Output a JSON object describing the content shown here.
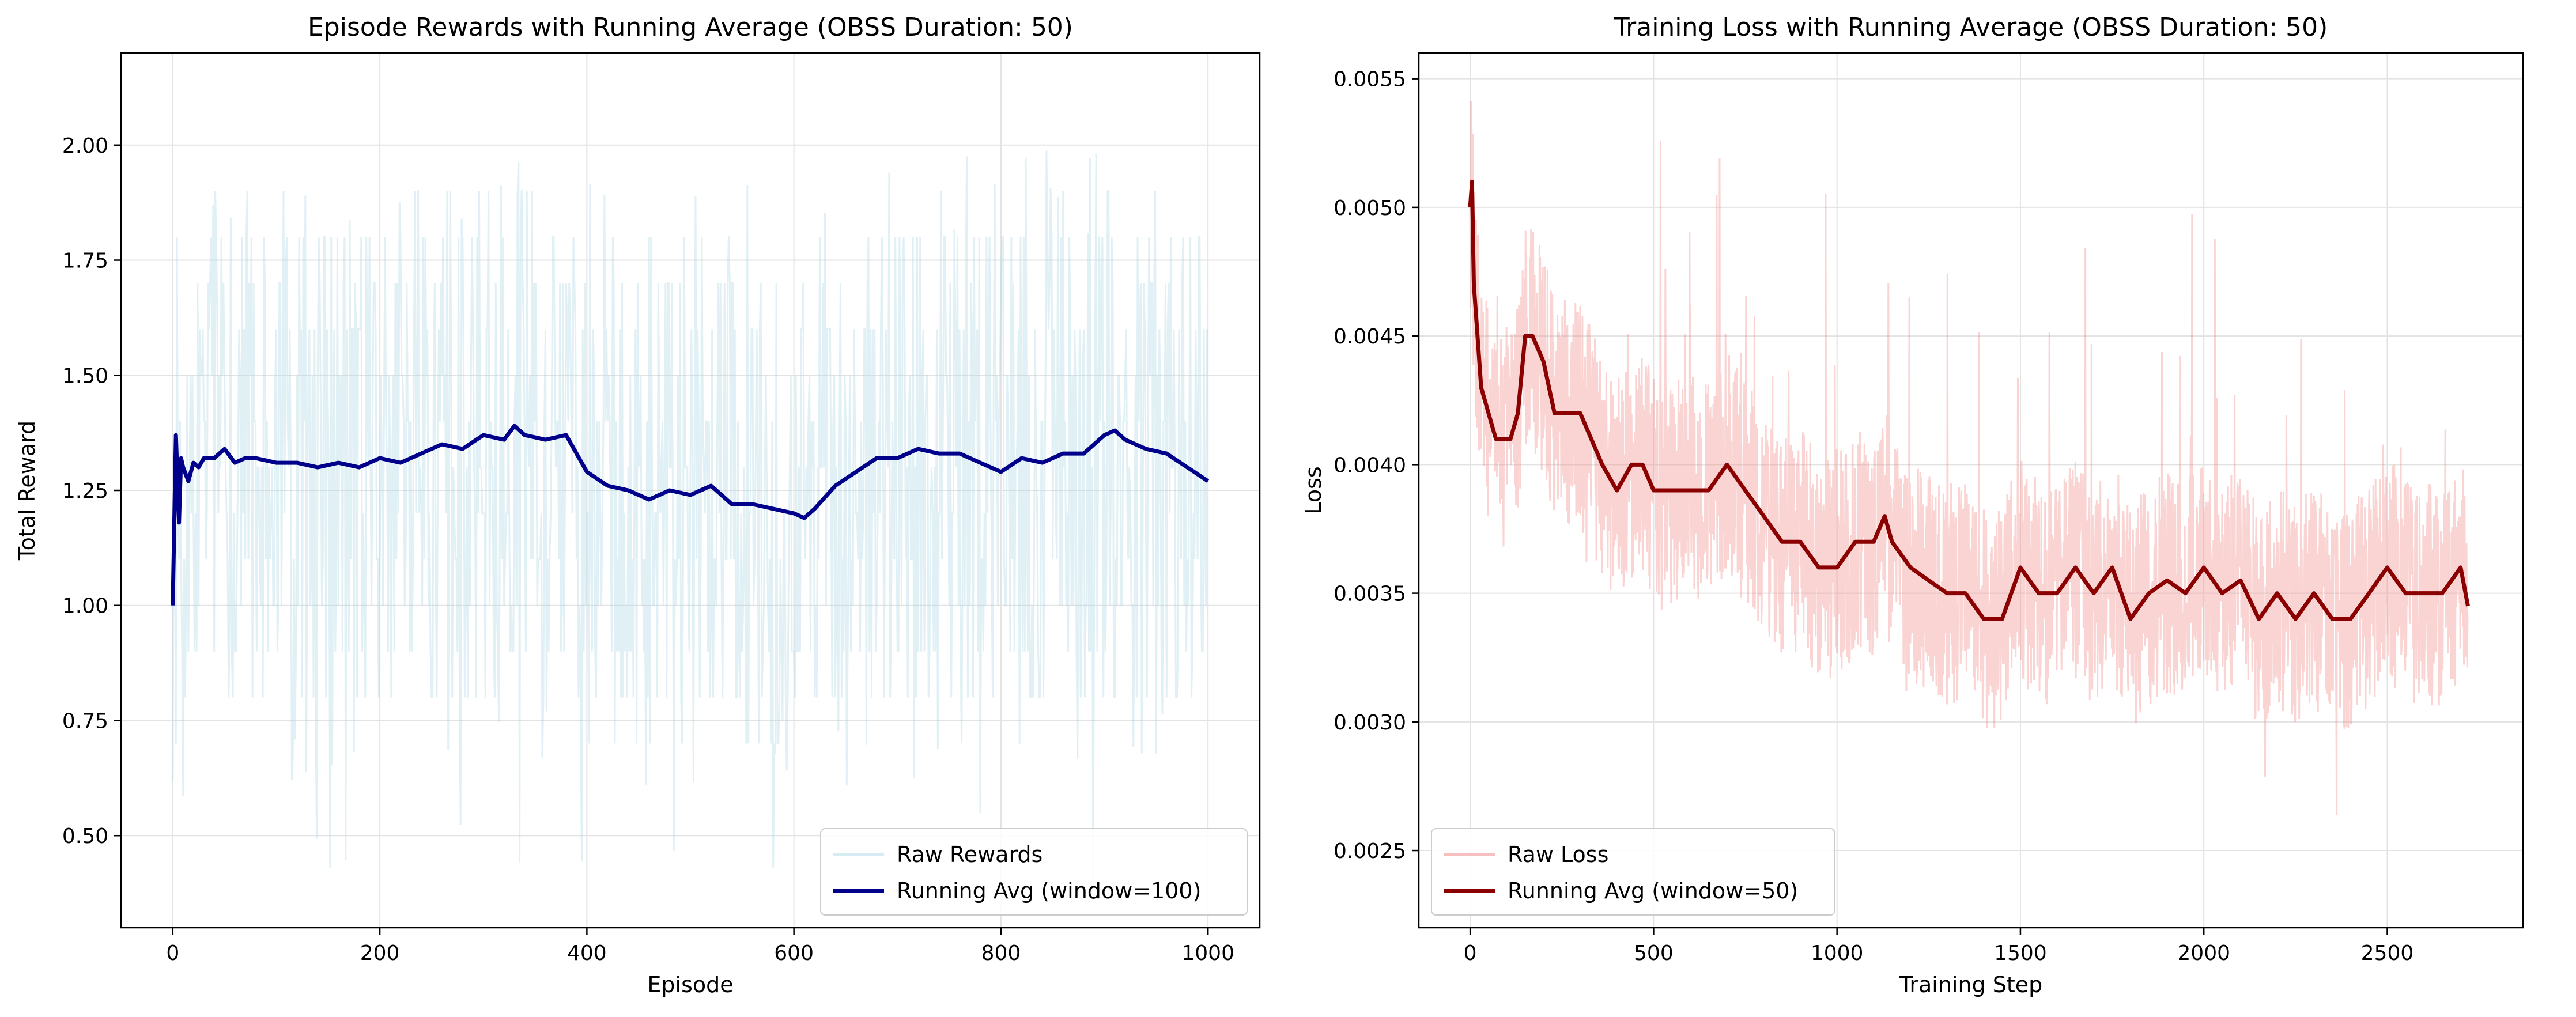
{
  "chart_data": [
    {
      "type": "line",
      "title": "Episode Rewards with Running Average (OBSS Duration: 50)",
      "xlabel": "Episode",
      "ylabel": "Total Reward",
      "xlim": [
        -50,
        1050
      ],
      "ylim": [
        0.3,
        2.2
      ],
      "xticks": [
        0,
        200,
        400,
        600,
        800,
        1000
      ],
      "yticks": [
        0.5,
        0.75,
        1.0,
        1.25,
        1.5,
        1.75,
        2.0
      ],
      "xtick_labels": [
        "0",
        "200",
        "400",
        "600",
        "800",
        "1000"
      ],
      "ytick_labels": [
        "0.50",
        "0.75",
        "1.00",
        "1.25",
        "1.50",
        "1.75",
        "2.00"
      ],
      "grid": true,
      "legend_position": "lower right",
      "series": [
        {
          "name": "Raw Rewards",
          "color": "#add8e6",
          "style": "raw",
          "n": 1000,
          "value_range": [
            0.4,
            2.0
          ],
          "typical_band": [
            0.8,
            1.8
          ]
        },
        {
          "name": "Running Avg (window=100)",
          "color": "#00008b",
          "style": "smooth",
          "x": [
            0,
            3,
            6,
            8,
            10,
            15,
            20,
            25,
            30,
            40,
            50,
            60,
            70,
            80,
            100,
            120,
            140,
            160,
            180,
            200,
            220,
            240,
            260,
            280,
            300,
            320,
            330,
            340,
            360,
            380,
            400,
            420,
            440,
            460,
            480,
            500,
            520,
            540,
            560,
            580,
            600,
            610,
            620,
            640,
            660,
            680,
            700,
            720,
            740,
            760,
            780,
            800,
            820,
            840,
            860,
            880,
            900,
            910,
            920,
            940,
            960,
            980,
            1000
          ],
          "y": [
            1.0,
            1.37,
            1.18,
            1.32,
            1.3,
            1.27,
            1.31,
            1.3,
            1.32,
            1.32,
            1.34,
            1.31,
            1.32,
            1.32,
            1.31,
            1.31,
            1.3,
            1.31,
            1.3,
            1.32,
            1.31,
            1.33,
            1.35,
            1.34,
            1.37,
            1.36,
            1.39,
            1.37,
            1.36,
            1.37,
            1.29,
            1.26,
            1.25,
            1.23,
            1.25,
            1.24,
            1.26,
            1.22,
            1.22,
            1.21,
            1.2,
            1.19,
            1.21,
            1.26,
            1.29,
            1.32,
            1.32,
            1.34,
            1.33,
            1.33,
            1.31,
            1.29,
            1.32,
            1.31,
            1.33,
            1.33,
            1.37,
            1.38,
            1.36,
            1.34,
            1.33,
            1.3,
            1.27
          ]
        }
      ]
    },
    {
      "type": "line",
      "title": "Training Loss with Running Average (OBSS Duration: 50)",
      "xlabel": "Training Step",
      "ylabel": "Loss",
      "xlim": [
        -140,
        2870
      ],
      "ylim": [
        0.0022,
        0.0056
      ],
      "xticks": [
        0,
        500,
        1000,
        1500,
        2000,
        2500
      ],
      "yticks": [
        0.0025,
        0.003,
        0.0035,
        0.004,
        0.0045,
        0.005,
        0.0055
      ],
      "xtick_labels": [
        "0",
        "500",
        "1000",
        "1500",
        "2000",
        "2500"
      ],
      "ytick_labels": [
        "0.0025",
        "0.0030",
        "0.0035",
        "0.0040",
        "0.0045",
        "0.0050",
        "0.0055"
      ],
      "grid": true,
      "legend_position": "lower left",
      "series": [
        {
          "name": "Raw Loss",
          "color": "#f08080",
          "style": "raw",
          "n": 2720,
          "value_range": [
            0.0024,
            0.0055
          ],
          "typical_band": [
            0.0029,
            0.0045
          ]
        },
        {
          "name": "Running Avg (window=50)",
          "color": "#8b0000",
          "style": "smooth",
          "x": [
            0,
            5,
            10,
            30,
            50,
            70,
            90,
            110,
            130,
            150,
            170,
            200,
            230,
            260,
            280,
            300,
            330,
            360,
            400,
            440,
            470,
            500,
            550,
            600,
            650,
            700,
            750,
            800,
            850,
            900,
            950,
            1000,
            1050,
            1100,
            1130,
            1150,
            1200,
            1250,
            1300,
            1350,
            1400,
            1450,
            1500,
            1550,
            1600,
            1650,
            1700,
            1750,
            1800,
            1850,
            1900,
            1950,
            2000,
            2050,
            2100,
            2150,
            2200,
            2250,
            2300,
            2350,
            2400,
            2450,
            2500,
            2550,
            2600,
            2650,
            2700,
            2720
          ],
          "y": [
            0.005,
            0.0051,
            0.0047,
            0.0043,
            0.0042,
            0.0041,
            0.0041,
            0.0041,
            0.0042,
            0.0045,
            0.0045,
            0.0044,
            0.0042,
            0.0042,
            0.0042,
            0.0042,
            0.0041,
            0.004,
            0.0039,
            0.004,
            0.004,
            0.0039,
            0.0039,
            0.0039,
            0.0039,
            0.004,
            0.0039,
            0.0038,
            0.0037,
            0.0037,
            0.0036,
            0.0036,
            0.0037,
            0.0037,
            0.0038,
            0.0037,
            0.0036,
            0.00355,
            0.0035,
            0.0035,
            0.0034,
            0.0034,
            0.0036,
            0.0035,
            0.0035,
            0.0036,
            0.0035,
            0.0036,
            0.0034,
            0.0035,
            0.00355,
            0.0035,
            0.0036,
            0.0035,
            0.00355,
            0.0034,
            0.0035,
            0.0034,
            0.0035,
            0.0034,
            0.0034,
            0.0035,
            0.0036,
            0.0035,
            0.0035,
            0.0035,
            0.0036,
            0.00345
          ]
        }
      ]
    }
  ]
}
